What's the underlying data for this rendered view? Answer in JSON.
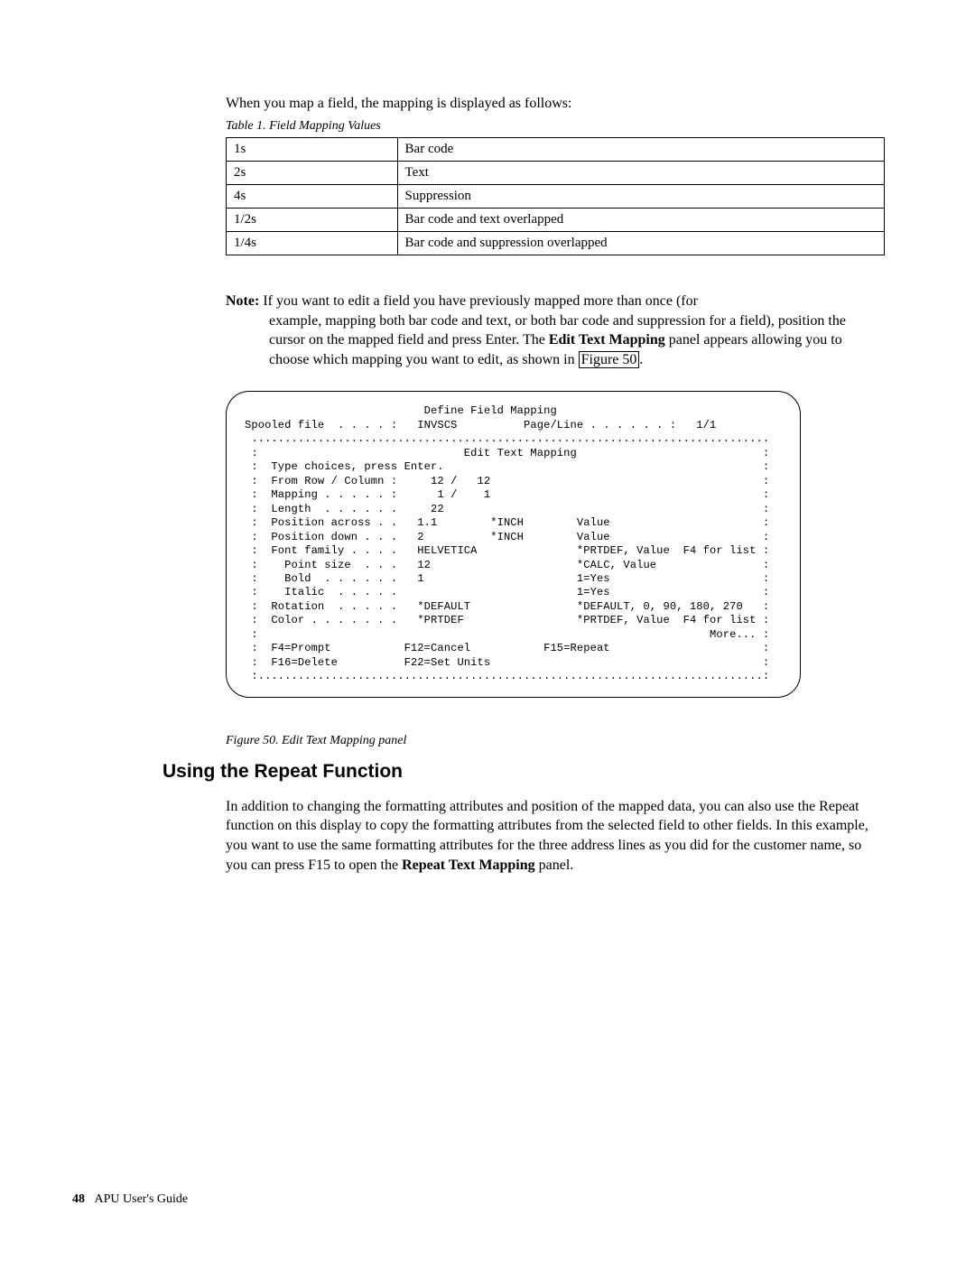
{
  "intro": "When you map a field, the mapping is displayed as follows:",
  "table_caption": "Table 1. Field Mapping Values",
  "mapping_rows": [
    {
      "code": "1s",
      "desc": "Bar code"
    },
    {
      "code": "2s",
      "desc": "Text"
    },
    {
      "code": "4s",
      "desc": "Suppression"
    },
    {
      "code": "1/2s",
      "desc": "Bar code and text overlapped"
    },
    {
      "code": "1/4s",
      "desc": "Bar code and suppression overlapped"
    }
  ],
  "note": {
    "label": "Note:",
    "line1": "If you want to edit a field you have previously mapped more than once (for",
    "line2": "example, mapping both bar code and text, or both bar code and suppression for a field), position the cursor on the mapped field and press Enter. The ",
    "bold_panel": "Edit Text Mapping",
    "line3": " panel appears allowing you to choose which mapping you want to edit, as shown in ",
    "link": "Figure 50",
    "line4": "."
  },
  "terminal_lines": [
    "                           Define Field Mapping",
    "Spooled file  . . . . :   INVSCS          Page/Line . . . . . . :   1/1",
    " ..............................................................................",
    " :                               Edit Text Mapping                            :",
    " :  Type choices, press Enter.                                                :",
    " :  From Row / Column :     12 /   12                                         :",
    " :  Mapping . . . . . :      1 /    1                                         :",
    " :  Length  . . . . . .     22                                                :",
    " :  Position across . .   1.1        *INCH        Value                       :",
    " :  Position down . . .   2          *INCH        Value                       :",
    " :  Font family . . . .   HELVETICA               *PRTDEF, Value  F4 for list :",
    " :    Point size  . . .   12                      *CALC, Value                :",
    " :    Bold  . . . . . .   1                       1=Yes                       :",
    " :    Italic  . . . . .                           1=Yes                       :",
    " :  Rotation  . . . . .   *DEFAULT                *DEFAULT, 0, 90, 180, 270   :",
    " :  Color . . . . . . .   *PRTDEF                 *PRTDEF, Value  F4 for list :",
    " :                                                                    More... :",
    " :  F4=Prompt           F12=Cancel           F15=Repeat                       :",
    " :  F16=Delete          F22=Set Units                                         :",
    " :............................................................................:"
  ],
  "figure_caption": "Figure 50. Edit Text Mapping panel",
  "section_heading": "Using the Repeat Function",
  "section_body_pre": "In addition to changing the formatting attributes and position of the mapped data, you can also use the Repeat function on this display to copy the formatting attributes from the selected field to other fields. In this example, you want to use the same formatting attributes for the three address lines as you did for the customer name, so you can press F15 to open the ",
  "section_body_bold": "Repeat Text Mapping",
  "section_body_post": " panel.",
  "footer": {
    "page_num": "48",
    "title": "APU User's Guide"
  }
}
